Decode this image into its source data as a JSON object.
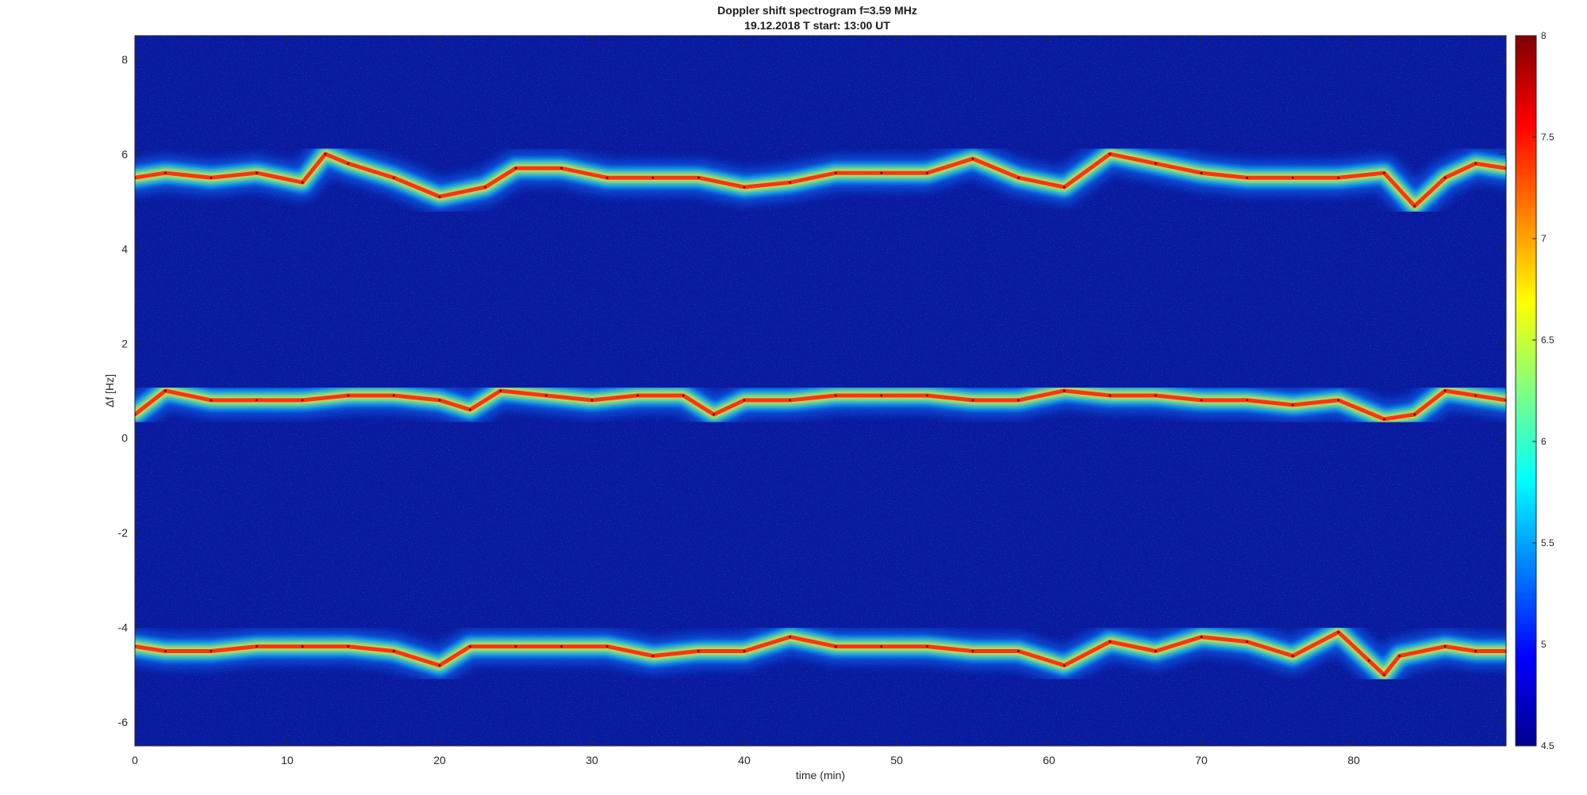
{
  "chart_data": {
    "type": "heatmap",
    "title": "Doppler shift spectrogram f=3.59 MHz",
    "subtitle": "19.12.2018   T start: 13:00 UT",
    "xlabel": "time (min)",
    "ylabel": "Δf [Hz]",
    "xlim": [
      0,
      90
    ],
    "ylim": [
      -6.5,
      8.5
    ],
    "xticks": [
      0,
      10,
      20,
      30,
      40,
      50,
      60,
      70,
      80
    ],
    "yticks": [
      -6,
      -4,
      -2,
      0,
      2,
      4,
      6,
      8
    ],
    "colorbar": {
      "min": 4.5,
      "max": 8,
      "ticks": [
        4.5,
        5,
        5.5,
        6,
        6.5,
        7,
        7.5,
        8
      ],
      "colormap": "jet"
    },
    "background_color": "#0a1a9e",
    "series": [
      {
        "x": [
          0,
          2,
          5,
          8,
          11,
          12.5,
          14,
          17,
          20,
          23,
          25,
          28,
          31,
          34,
          37,
          40,
          43,
          46,
          49,
          52,
          55,
          58,
          61,
          64,
          67,
          70,
          73,
          76,
          79,
          82,
          84,
          86,
          88,
          90
        ],
        "y": [
          5.5,
          5.6,
          5.5,
          5.6,
          5.4,
          6.0,
          5.8,
          5.5,
          5.1,
          5.3,
          5.7,
          5.7,
          5.5,
          5.5,
          5.5,
          5.3,
          5.4,
          5.6,
          5.6,
          5.6,
          5.9,
          5.5,
          5.3,
          6.0,
          5.8,
          5.6,
          5.5,
          5.5,
          5.5,
          5.6,
          4.9,
          5.5,
          5.8,
          5.7
        ]
      },
      {
        "x": [
          0,
          2,
          5,
          8,
          11,
          14,
          17,
          20,
          22,
          24,
          27,
          30,
          33,
          36,
          38,
          40,
          43,
          46,
          49,
          52,
          55,
          58,
          61,
          64,
          67,
          70,
          73,
          76,
          79,
          82,
          84,
          86,
          88,
          90
        ],
        "y": [
          0.5,
          1.0,
          0.8,
          0.8,
          0.8,
          0.9,
          0.9,
          0.8,
          0.6,
          1.0,
          0.9,
          0.8,
          0.9,
          0.9,
          0.5,
          0.8,
          0.8,
          0.9,
          0.9,
          0.9,
          0.8,
          0.8,
          1.0,
          0.9,
          0.9,
          0.8,
          0.8,
          0.7,
          0.8,
          0.4,
          0.5,
          1.0,
          0.9,
          0.8
        ]
      },
      {
        "x": [
          0,
          2,
          5,
          8,
          11,
          14,
          17,
          20,
          22,
          25,
          28,
          31,
          34,
          37,
          40,
          43,
          46,
          49,
          52,
          55,
          58,
          61,
          64,
          67,
          70,
          73,
          76,
          79,
          81,
          82,
          83,
          86,
          88,
          90
        ],
        "y": [
          -4.4,
          -4.5,
          -4.5,
          -4.4,
          -4.4,
          -4.4,
          -4.5,
          -4.8,
          -4.4,
          -4.4,
          -4.4,
          -4.4,
          -4.6,
          -4.5,
          -4.5,
          -4.2,
          -4.4,
          -4.4,
          -4.4,
          -4.5,
          -4.5,
          -4.8,
          -4.3,
          -4.5,
          -4.2,
          -4.3,
          -4.6,
          -4.1,
          -4.7,
          -5.0,
          -4.6,
          -4.4,
          -4.5,
          -4.5
        ]
      }
    ]
  }
}
